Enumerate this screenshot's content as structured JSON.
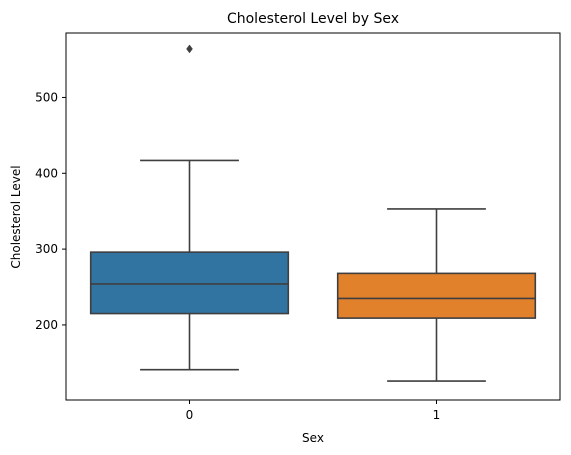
{
  "chart_data": {
    "type": "box",
    "title": "Cholesterol Level by Sex",
    "xlabel": "Sex",
    "ylabel": "Cholesterol Level",
    "ylim": [
      101,
      585
    ],
    "yticks": [
      200,
      300,
      400,
      500
    ],
    "grid": false,
    "categories": [
      "0",
      "1"
    ],
    "boxes": [
      {
        "category": "0",
        "whisker_low": 141,
        "q1": 215,
        "median": 254,
        "q3": 296,
        "whisker_high": 417,
        "outliers": [
          564
        ],
        "color": "#3274a1"
      },
      {
        "category": "1",
        "whisker_low": 126,
        "q1": 209,
        "median": 235,
        "q3": 268,
        "whisker_high": 353,
        "outliers": [],
        "color": "#e1812c"
      }
    ]
  }
}
